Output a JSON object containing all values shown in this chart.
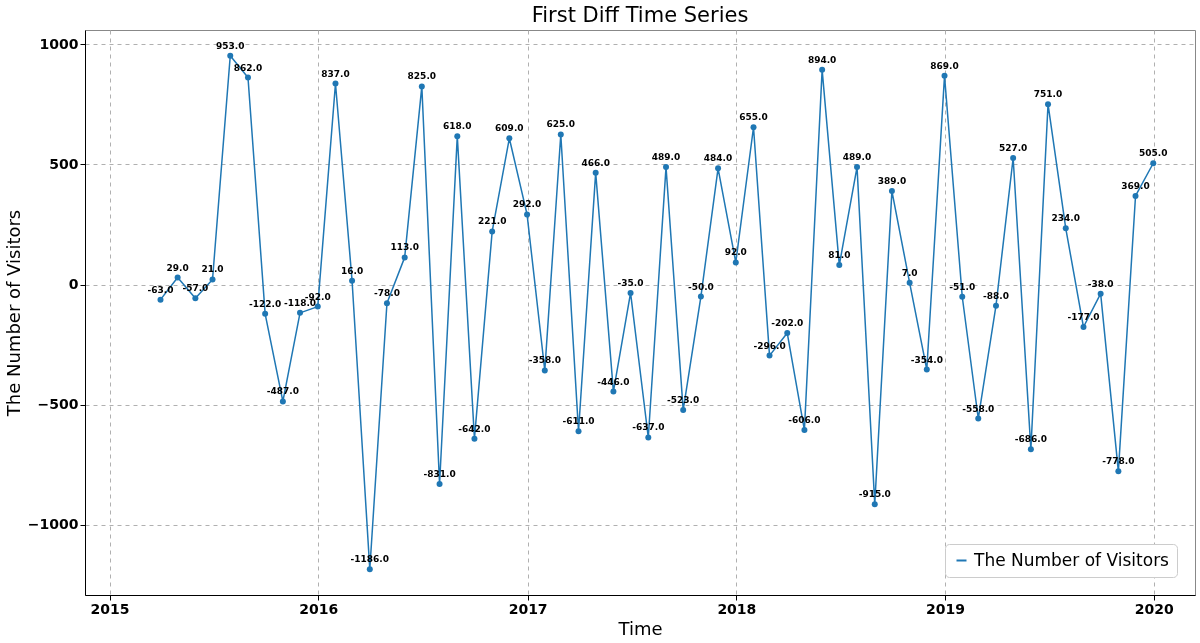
{
  "chart_data": {
    "type": "line",
    "title": "First Diff Time Series",
    "xlabel": "Time",
    "ylabel": "The Number of Visitors",
    "x": [
      "2015-03-31",
      "2015-04-30",
      "2015-05-31",
      "2015-06-30",
      "2015-07-31",
      "2015-08-31",
      "2015-09-30",
      "2015-10-31",
      "2015-11-30",
      "2015-12-31",
      "2016-01-31",
      "2016-02-29",
      "2016-03-31",
      "2016-04-30",
      "2016-05-31",
      "2016-06-30",
      "2016-07-31",
      "2016-08-31",
      "2016-09-30",
      "2016-10-31",
      "2016-11-30",
      "2016-12-31",
      "2017-01-31",
      "2017-02-28",
      "2017-03-31",
      "2017-04-30",
      "2017-05-31",
      "2017-06-30",
      "2017-07-31",
      "2017-08-31",
      "2017-09-30",
      "2017-10-31",
      "2017-11-30",
      "2017-12-31",
      "2018-01-31",
      "2018-02-28",
      "2018-03-31",
      "2018-04-30",
      "2018-05-31",
      "2018-06-30",
      "2018-07-31",
      "2018-08-31",
      "2018-09-30",
      "2018-10-31",
      "2018-11-30",
      "2018-12-31",
      "2019-01-31",
      "2019-02-28",
      "2019-03-31",
      "2019-04-30",
      "2019-05-31",
      "2019-06-30",
      "2019-07-31",
      "2019-08-31",
      "2019-09-30",
      "2019-10-31",
      "2019-11-30",
      "2019-12-31"
    ],
    "series": [
      {
        "name": "The Number of Visitors",
        "color": "#1f77b4",
        "values": [
          -63,
          29,
          -57,
          21,
          953,
          862,
          -122,
          -487,
          -118,
          -92,
          837,
          16,
          -1186,
          -78,
          113,
          825,
          -831,
          618,
          -642,
          221,
          609,
          292,
          -358,
          625,
          -611,
          466,
          -446,
          -35,
          -637,
          489,
          -523,
          -50,
          484,
          92,
          655,
          -296,
          -202,
          -606,
          894,
          81,
          489,
          -915,
          389,
          7,
          -354,
          869,
          -51,
          -558,
          -88,
          527,
          -686,
          751,
          234,
          -177,
          -38,
          -778,
          369,
          505
        ],
        "value_labels": [
          "-63.0",
          "29.0",
          "-57.0",
          "21.0",
          "953.0",
          "862.0",
          "-122.0",
          "-487.0",
          "-118.0",
          "-92.0",
          "837.0",
          "16.0",
          "-1186.0",
          "-78.0",
          "113.0",
          "825.0",
          "-831.0",
          "618.0",
          "-642.0",
          "221.0",
          "609.0",
          "292.0",
          "-358.0",
          "625.0",
          "-611.0",
          "466.0",
          "-446.0",
          "-35.0",
          "-637.0",
          "489.0",
          "-523.0",
          "-50.0",
          "484.0",
          "92.0",
          "655.0",
          "-296.0",
          "-202.0",
          "-606.0",
          "894.0",
          "81.0",
          "489.0",
          "-915.0",
          "389.0",
          "7.0",
          "-354.0",
          "869.0",
          "-51.0",
          "-558.0",
          "-88.0",
          "527.0",
          "-686.0",
          "751.0",
          "234.0",
          "-177.0",
          "-38.0",
          "-778.0",
          "369.0",
          "505.0"
        ]
      }
    ],
    "xlim": [
      "2014-11-19",
      "2020-03-13"
    ],
    "xticks": [
      {
        "value": "2015-01-01",
        "label": "2015"
      },
      {
        "value": "2016-01-01",
        "label": "2016"
      },
      {
        "value": "2017-01-01",
        "label": "2017"
      },
      {
        "value": "2018-01-01",
        "label": "2018"
      },
      {
        "value": "2019-01-01",
        "label": "2019"
      },
      {
        "value": "2020-01-01",
        "label": "2020"
      }
    ],
    "ylim": [
      -1293,
      1060
    ],
    "yticks": [
      {
        "value": -1000,
        "label": "−1000"
      },
      {
        "value": -500,
        "label": "−500"
      },
      0,
      500,
      1000
    ],
    "grid": true,
    "legend": "bottom right",
    "marker": "circle",
    "line_style": "solid"
  }
}
